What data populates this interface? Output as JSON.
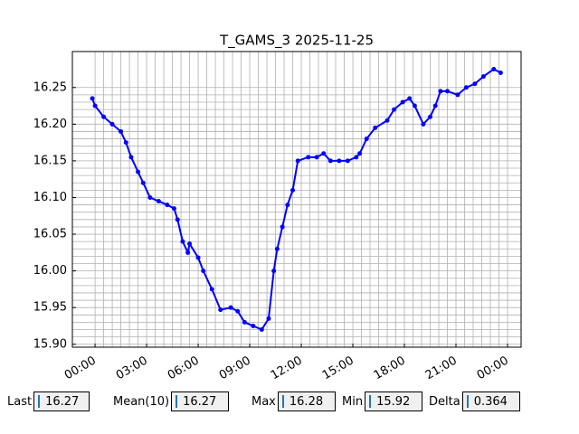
{
  "chart_data": {
    "type": "line",
    "title": "T_GAMS_3 2025-11-25",
    "x": [
      -0.16,
      0,
      0.5,
      1,
      1.5,
      1.8,
      2.1,
      2.5,
      2.8,
      3.2,
      3.7,
      4.2,
      4.6,
      4.8,
      5.1,
      5.4,
      5.5,
      6,
      6.3,
      6.8,
      7.3,
      7.9,
      8.3,
      8.7,
      9.2,
      9.7,
      10.1,
      10.4,
      10.6,
      10.9,
      11.2,
      11.5,
      11.8,
      12.4,
      12.9,
      13.3,
      13.7,
      14.2,
      14.7,
      15.2,
      15.4,
      15.8,
      16.3,
      17,
      17.4,
      17.9,
      18.3,
      18.6,
      19.1,
      19.5,
      19.8,
      20.1,
      20.5,
      21.1,
      21.6,
      22.1,
      22.6,
      23.2,
      23.6
    ],
    "series": [
      {
        "name": "T_GAMS_3",
        "color": "#0000ff",
        "values": [
          16.235,
          16.225,
          16.21,
          16.2,
          16.19,
          16.175,
          16.155,
          16.135,
          16.12,
          16.1,
          16.095,
          16.09,
          16.085,
          16.07,
          16.04,
          16.025,
          16.037,
          16.018,
          16.0,
          15.975,
          15.947,
          15.95,
          15.945,
          15.93,
          15.925,
          15.92,
          15.935,
          16.0,
          16.03,
          16.06,
          16.09,
          16.11,
          16.15,
          16.155,
          16.155,
          16.16,
          16.15,
          16.15,
          16.15,
          16.155,
          16.16,
          16.18,
          16.195,
          16.205,
          16.22,
          16.23,
          16.235,
          16.225,
          16.2,
          16.21,
          16.225,
          16.245,
          16.245,
          16.24,
          16.25,
          16.255,
          16.265,
          16.275,
          16.27
        ]
      }
    ],
    "xlim": [
      -1.32,
      24.79
    ],
    "ylim": [
      15.896,
      16.299
    ],
    "xticks": [
      {
        "value": 0,
        "label": "00:00"
      },
      {
        "value": 3,
        "label": "03:00"
      },
      {
        "value": 6,
        "label": "06:00"
      },
      {
        "value": 9,
        "label": "09:00"
      },
      {
        "value": 12,
        "label": "12:00"
      },
      {
        "value": 15,
        "label": "15:00"
      },
      {
        "value": 18,
        "label": "18:00"
      },
      {
        "value": 21,
        "label": "21:00"
      },
      {
        "value": 24,
        "label": "00:00"
      }
    ],
    "yticks": [
      {
        "value": 15.9,
        "label": "15.90"
      },
      15.95,
      {
        "value": 16,
        "label": "16.00"
      },
      16.05,
      {
        "value": 16.1,
        "label": "16.10"
      },
      16.15,
      {
        "value": 16.2,
        "label": "16.20"
      },
      16.25
    ],
    "grid": true
  },
  "fields": [
    {
      "label": "Last",
      "value": 16.27
    },
    {
      "label": "Mean(10)",
      "value": 16.27
    },
    {
      "label": "Max",
      "value": 16.28
    },
    {
      "label": "Min",
      "value": 15.92
    },
    {
      "label": "Delta",
      "value": 0.364
    }
  ]
}
